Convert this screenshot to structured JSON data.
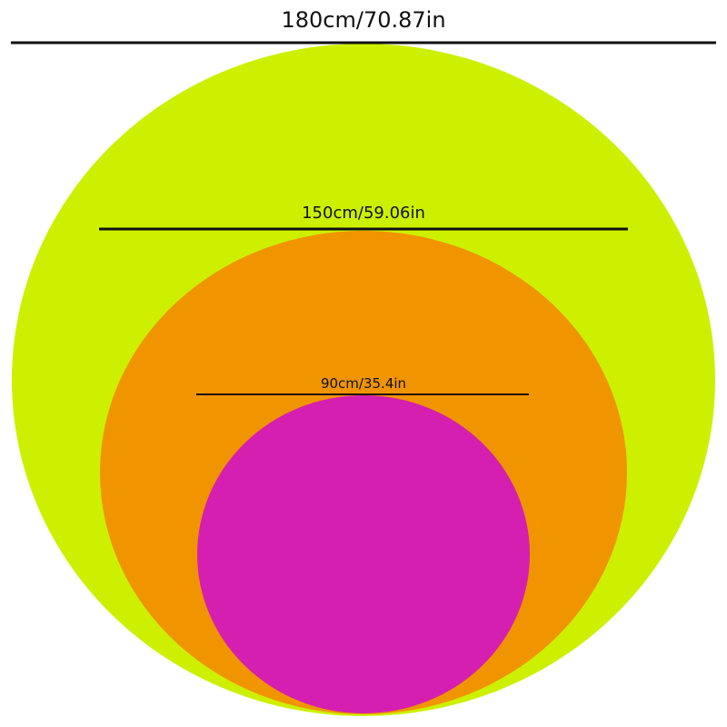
{
  "sizes": [
    {
      "label": "180cm/70.87in",
      "color": "#cdf000"
    },
    {
      "label": "150cm/59.06in",
      "color": "#f09400"
    },
    {
      "label": "90cm/35.4in",
      "color": "#d51fb0"
    }
  ]
}
